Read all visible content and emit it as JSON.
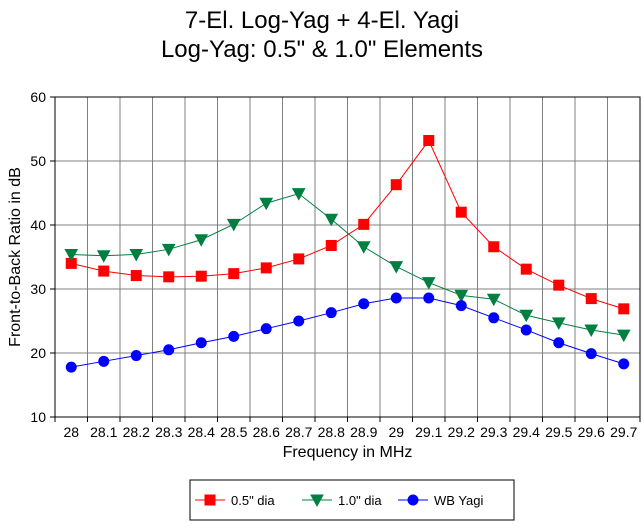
{
  "chart_data": {
    "type": "line",
    "title_lines": [
      "7-El. Log-Yag + 4-El. Yagi",
      "Log-Yag:  0.5\" & 1.0\" Elements"
    ],
    "xlabel": "Frequency in MHz",
    "ylabel": "Front-to-Back Ratio in dB",
    "x_categories": [
      "28",
      "28.1",
      "28.2",
      "28.3",
      "28.4",
      "28.5",
      "28.6",
      "28.7",
      "28.8",
      "28.9",
      "29",
      "29.1",
      "29.2",
      "29.3",
      "29.4",
      "29.5",
      "29.6",
      "29.7"
    ],
    "ylim": [
      10,
      60
    ],
    "yticks": [
      10,
      20,
      30,
      40,
      50,
      60
    ],
    "grid": true,
    "legend_position": "bottom",
    "series": [
      {
        "name": "0.5\" dia",
        "color": "#ff0000",
        "marker": "square",
        "values": [
          34.0,
          32.8,
          32.1,
          31.9,
          32.0,
          32.4,
          33.3,
          34.7,
          36.8,
          40.1,
          46.3,
          53.2,
          42.0,
          36.6,
          33.1,
          30.6,
          28.5,
          26.9
        ]
      },
      {
        "name": "1.0\" dia",
        "color": "#008040",
        "marker": "triangle-down",
        "values": [
          35.4,
          35.2,
          35.4,
          36.2,
          37.7,
          40.1,
          43.4,
          44.9,
          40.9,
          36.6,
          33.5,
          31.0,
          29.0,
          28.4,
          25.9,
          24.7,
          23.6,
          22.8
        ]
      },
      {
        "name": "WB Yagi",
        "color": "#0000ff",
        "marker": "circle",
        "values": [
          17.8,
          18.7,
          19.6,
          20.5,
          21.6,
          22.6,
          23.8,
          25.0,
          26.3,
          27.7,
          28.6,
          28.6,
          27.4,
          25.5,
          23.6,
          21.6,
          19.9,
          18.3
        ]
      }
    ]
  }
}
